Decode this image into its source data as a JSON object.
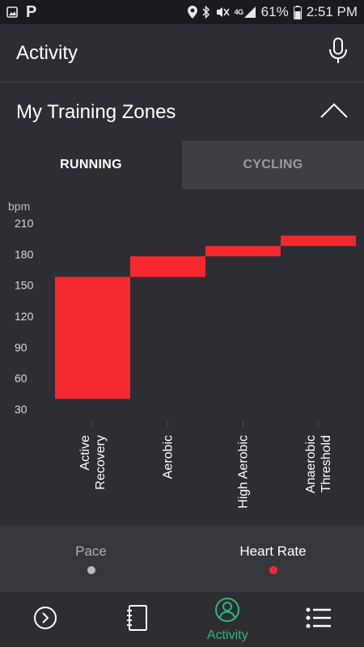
{
  "status_bar": {
    "battery_percent": "61%",
    "time": "2:51 PM",
    "network": "4G",
    "icons": [
      "parking-icon",
      "location-icon",
      "bluetooth-icon",
      "mute-icon",
      "signal-icon",
      "battery-icon"
    ]
  },
  "app_bar": {
    "title": "Activity",
    "mic_icon": "microphone-icon"
  },
  "section": {
    "title": "My Training Zones",
    "toggle_icon": "chevron-up-icon"
  },
  "tabs": [
    {
      "label": "RUNNING",
      "active": true
    },
    {
      "label": "CYCLING",
      "active": false
    }
  ],
  "chart_data": {
    "type": "bar",
    "ylabel": "bpm",
    "ylim": [
      30,
      210
    ],
    "yticks": [
      210,
      180,
      150,
      120,
      90,
      60,
      30
    ],
    "categories": [
      "Active\nRecovery",
      "Aerobic",
      "High Aerobic",
      "Anaerobic\nThreshold"
    ],
    "ranges": [
      [
        40,
        158
      ],
      [
        158,
        178
      ],
      [
        178,
        188
      ],
      [
        188,
        198
      ]
    ],
    "bar_color": "#f5282e"
  },
  "metric_toggle": [
    {
      "label": "Pace",
      "active": false,
      "dot_color": "#b8bac0"
    },
    {
      "label": "Heart Rate",
      "active": true,
      "dot_color": "#f5282e"
    }
  ],
  "bottom_nav": [
    {
      "icon": "play-circle-icon",
      "label": ""
    },
    {
      "icon": "notebook-icon",
      "label": ""
    },
    {
      "icon": "profile-icon",
      "label": "Activity",
      "active": true
    },
    {
      "icon": "list-menu-icon",
      "label": ""
    }
  ],
  "colors": {
    "accent_green": "#37b37a",
    "zone_red": "#f5282e"
  }
}
